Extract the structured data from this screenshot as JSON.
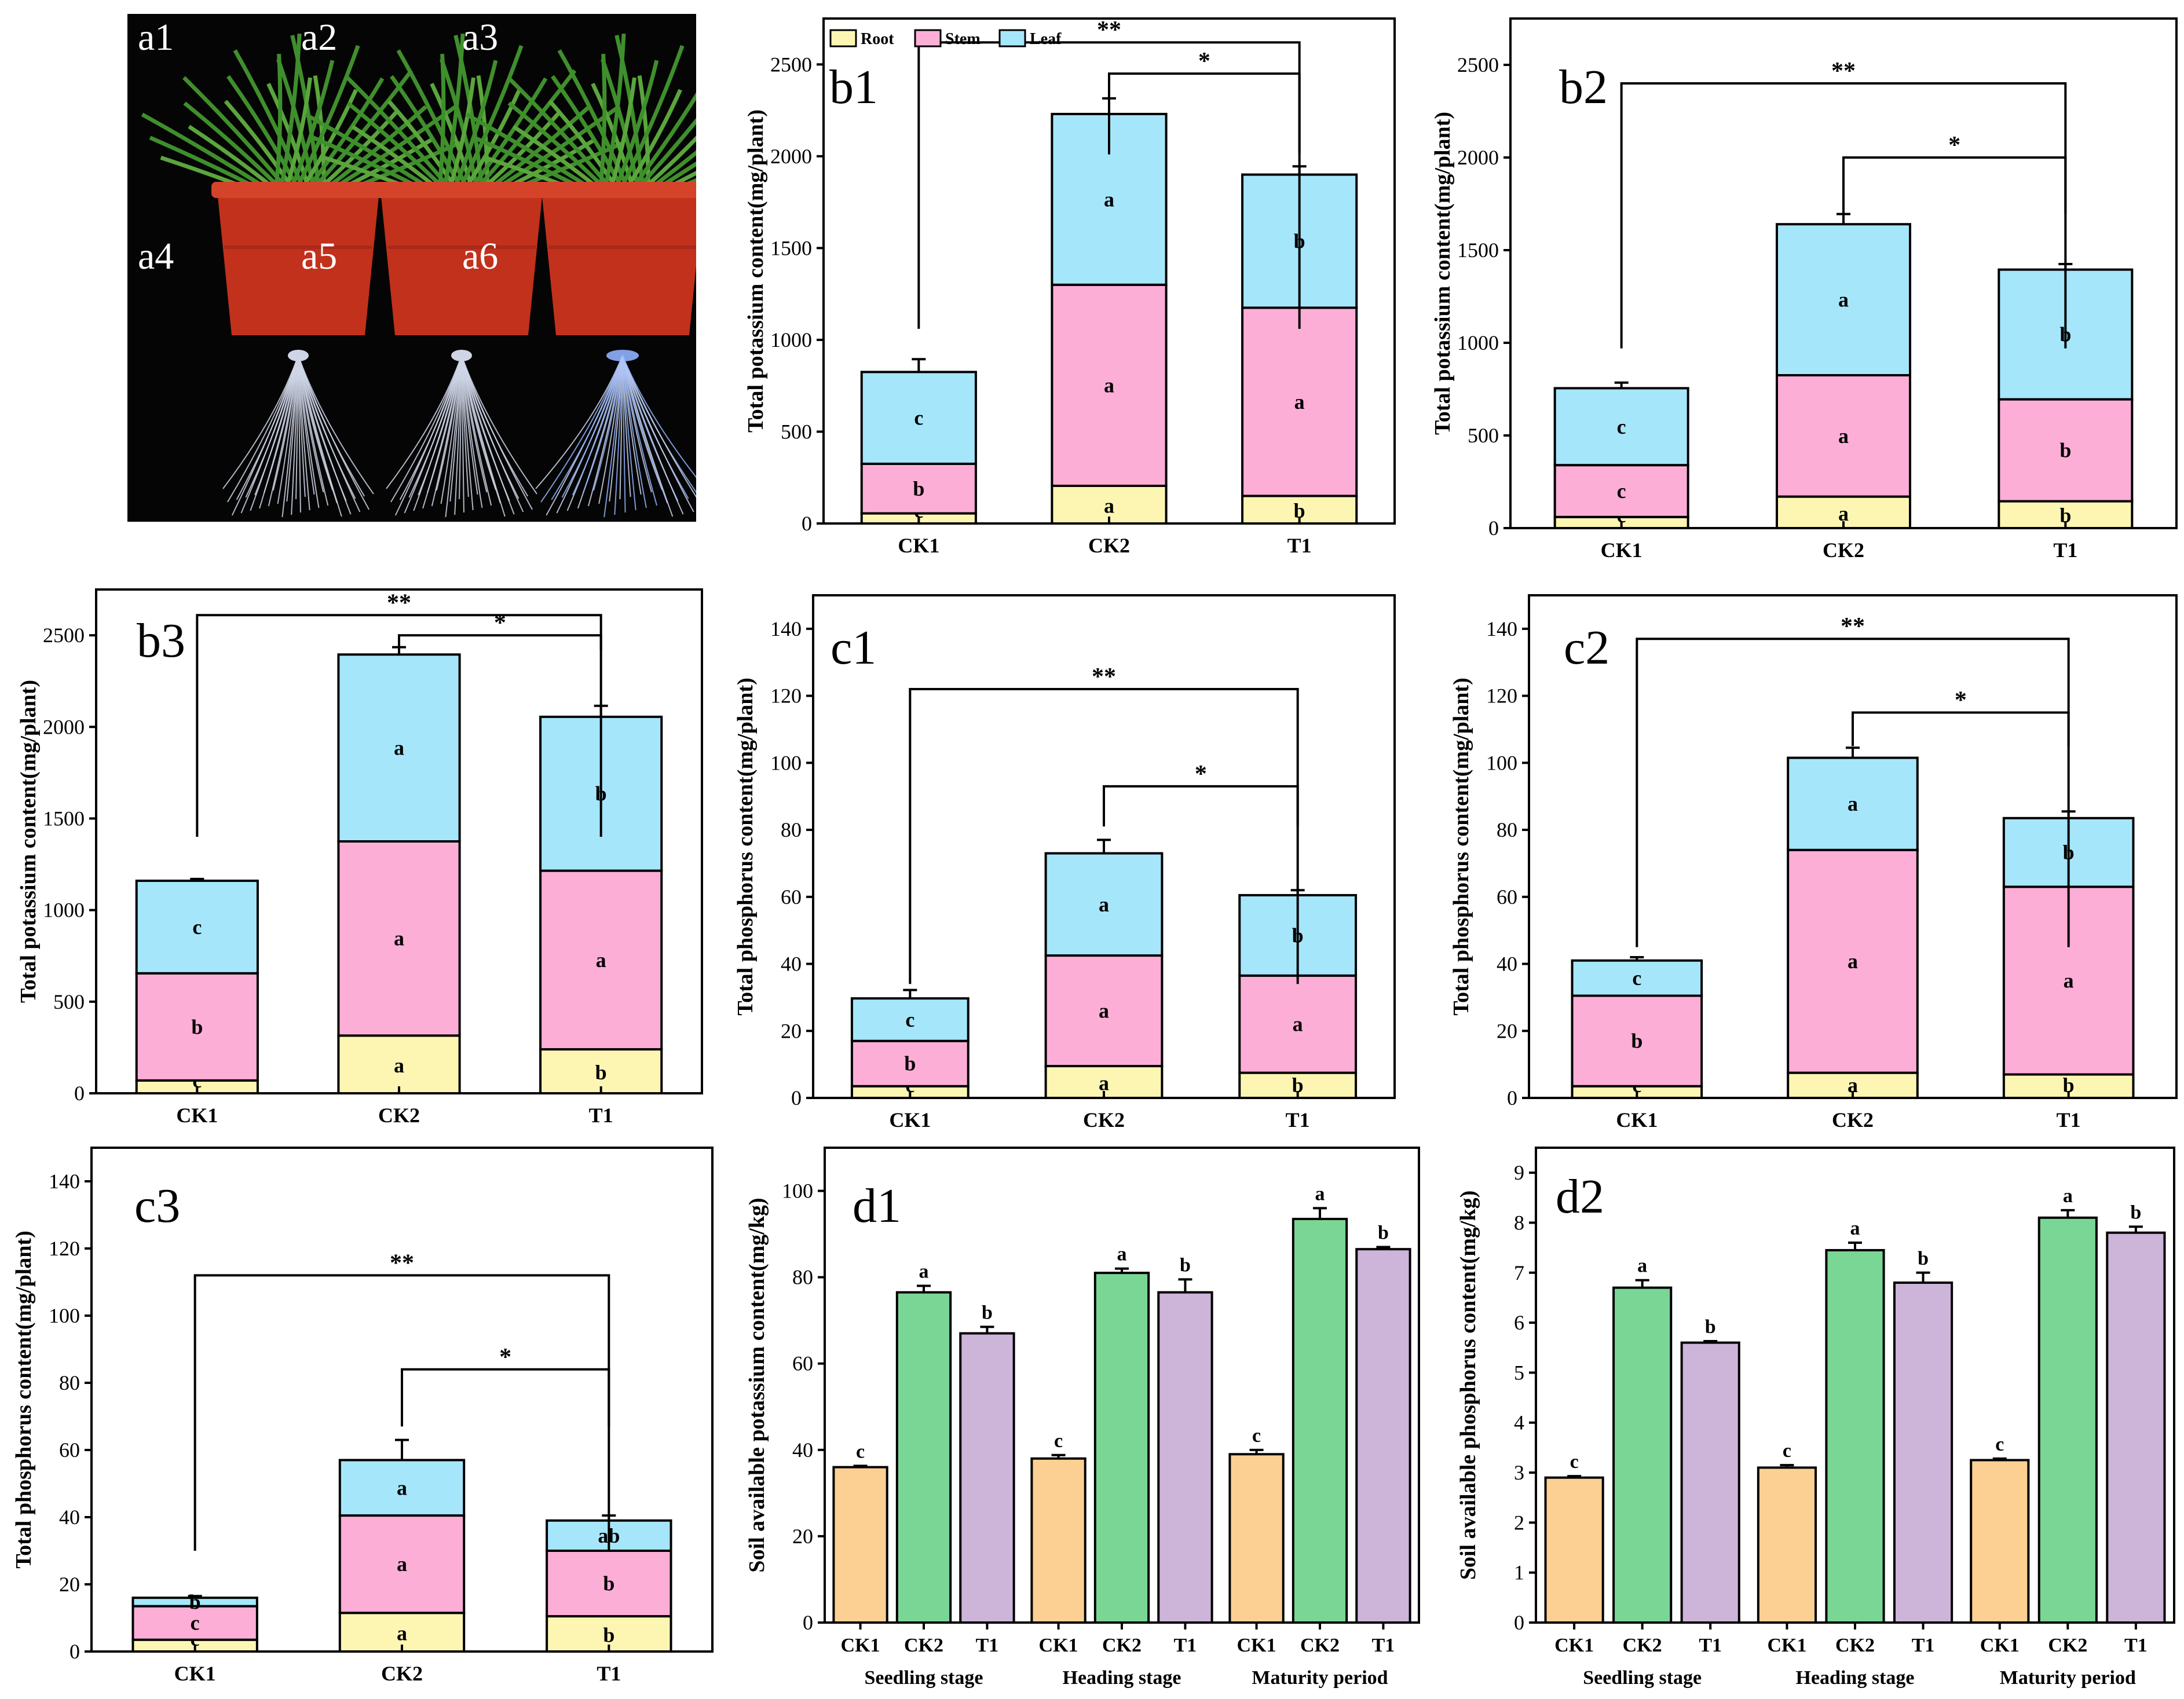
{
  "photo": {
    "labels": [
      "a1",
      "a2",
      "a3",
      "a4",
      "a5",
      "a6"
    ],
    "colors": {
      "pot": "#c2311c",
      "pot_rim": "#d5432a",
      "leaf": "#3f8f2c",
      "root": "#cfd6e8",
      "root_glow": "#8fb3ff"
    }
  },
  "colors": {
    "root": "#fdf6b3",
    "stem": "#fcaed7",
    "leaf": "#a6e6fb",
    "ck1": "#fcd092",
    "ck2": "#7ad695",
    "t1": "#cdb4d9",
    "stroke": "#000000"
  },
  "chart_data": [
    {
      "id": "b1",
      "type": "stacked-bar",
      "panel_label": "b1",
      "ylabel": "Total potassium content(mg/plant)",
      "ylim": [
        0,
        2750
      ],
      "yticks": [
        0,
        500,
        1000,
        1500,
        2000,
        2500
      ],
      "categories": [
        "CK1",
        "CK2",
        "T1"
      ],
      "legend": [
        "Root",
        "Stem",
        "Leaf"
      ],
      "series": [
        {
          "name": "Root",
          "values": [
            55,
            205,
            150
          ],
          "errors": [
            0,
            10,
            15
          ],
          "letters": [
            "c",
            "a",
            "b"
          ]
        },
        {
          "name": "Stem",
          "values": [
            270,
            1095,
            1025
          ],
          "errors": [
            40,
            55,
            130
          ],
          "letters": [
            "b",
            "a",
            "a"
          ]
        },
        {
          "name": "Leaf",
          "values": [
            500,
            930,
            725
          ],
          "errors": [
            70,
            85,
            45
          ],
          "letters": [
            "c",
            "a",
            "b"
          ]
        }
      ],
      "brackets": [
        {
          "from": "CK1",
          "to": "T1",
          "label": "**",
          "y": 2620,
          "drop": 1060
        },
        {
          "from": "CK2",
          "to": "T1",
          "label": "*",
          "y": 2450,
          "drop": 2010
        }
      ]
    },
    {
      "id": "b2",
      "type": "stacked-bar",
      "panel_label": "b2",
      "ylabel": "Total potassium content(mg/plant)",
      "ylim": [
        0,
        2750
      ],
      "yticks": [
        0,
        500,
        1000,
        1500,
        2000,
        2500
      ],
      "categories": [
        "CK1",
        "CK2",
        "T1"
      ],
      "series": [
        {
          "name": "Root",
          "values": [
            60,
            170,
            145
          ],
          "errors": [
            0,
            10,
            10
          ],
          "letters": [
            "c",
            "a",
            "b"
          ]
        },
        {
          "name": "Stem",
          "values": [
            280,
            655,
            550
          ],
          "errors": [
            35,
            55,
            40
          ],
          "letters": [
            "c",
            "a",
            "b"
          ]
        },
        {
          "name": "Leaf",
          "values": [
            415,
            815,
            700
          ],
          "errors": [
            30,
            55,
            30
          ],
          "letters": [
            "c",
            "a",
            "b"
          ]
        }
      ],
      "brackets": [
        {
          "from": "CK1",
          "to": "T1",
          "label": "**",
          "y": 2400,
          "drop": 970
        },
        {
          "from": "CK2",
          "to": "T1",
          "label": "*",
          "y": 2000,
          "drop": 1700
        }
      ]
    },
    {
      "id": "b3",
      "type": "stacked-bar",
      "panel_label": "b3",
      "ylabel": "Total potassium content(mg/plant)",
      "ylim": [
        0,
        2750
      ],
      "yticks": [
        0,
        500,
        1000,
        1500,
        2000,
        2500
      ],
      "categories": [
        "CK1",
        "CK2",
        "T1"
      ],
      "series": [
        {
          "name": "Root",
          "values": [
            70,
            315,
            240
          ],
          "errors": [
            0,
            10,
            10
          ],
          "letters": [
            "c",
            "a",
            "b"
          ]
        },
        {
          "name": "Stem",
          "values": [
            585,
            1060,
            975
          ],
          "errors": [
            40,
            65,
            25
          ],
          "letters": [
            "b",
            "a",
            "a"
          ]
        },
        {
          "name": "Leaf",
          "values": [
            505,
            1020,
            840
          ],
          "errors": [
            10,
            40,
            60
          ],
          "letters": [
            "c",
            "a",
            "b"
          ]
        }
      ],
      "brackets": [
        {
          "from": "CK1",
          "to": "T1",
          "label": "**",
          "y": 2610,
          "drop": 1400
        },
        {
          "from": "CK2",
          "to": "T1",
          "label": "*",
          "y": 2500,
          "drop": 2420
        }
      ]
    },
    {
      "id": "c1",
      "type": "stacked-bar",
      "panel_label": "c1",
      "ylabel": "Total phosphorus content(mg/plant)",
      "ylim": [
        0,
        150
      ],
      "yticks": [
        0,
        20,
        40,
        60,
        80,
        100,
        120,
        140
      ],
      "categories": [
        "CK1",
        "CK2",
        "T1"
      ],
      "series": [
        {
          "name": "Root",
          "values": [
            3.5,
            9.5,
            7.5
          ],
          "errors": [
            0,
            0.5,
            0.5
          ],
          "letters": [
            "c",
            "a",
            "b"
          ]
        },
        {
          "name": "Stem",
          "values": [
            13.5,
            33.0,
            29.0
          ],
          "errors": [
            2,
            4,
            4
          ],
          "letters": [
            "b",
            "a",
            "a"
          ]
        },
        {
          "name": "Leaf",
          "values": [
            12.7,
            30.5,
            24.0
          ],
          "errors": [
            2.5,
            4,
            1.5
          ],
          "letters": [
            "c",
            "a",
            "b"
          ]
        }
      ],
      "brackets": [
        {
          "from": "CK1",
          "to": "T1",
          "label": "**",
          "y": 122,
          "drop": 34
        },
        {
          "from": "CK2",
          "to": "T1",
          "label": "*",
          "y": 93,
          "drop": 81
        }
      ]
    },
    {
      "id": "c2",
      "type": "stacked-bar",
      "panel_label": "c2",
      "ylabel": "Total phosphorus content(mg/plant)",
      "ylim": [
        0,
        150
      ],
      "yticks": [
        0,
        20,
        40,
        60,
        80,
        100,
        120,
        140
      ],
      "categories": [
        "CK1",
        "CK2",
        "T1"
      ],
      "series": [
        {
          "name": "Root",
          "values": [
            3.5,
            7.5,
            7.0
          ],
          "errors": [
            0,
            0.8,
            0.5
          ],
          "letters": [
            "c",
            "a",
            "b"
          ]
        },
        {
          "name": "Stem",
          "values": [
            27.0,
            66.5,
            56.0
          ],
          "errors": [
            5,
            6,
            5
          ],
          "letters": [
            "b",
            "a",
            "a"
          ]
        },
        {
          "name": "Leaf",
          "values": [
            10.5,
            27.5,
            20.5
          ],
          "errors": [
            1,
            3,
            2
          ],
          "letters": [
            "c",
            "a",
            "b"
          ]
        }
      ],
      "brackets": [
        {
          "from": "CK1",
          "to": "T1",
          "label": "**",
          "y": 137,
          "drop": 45
        },
        {
          "from": "CK2",
          "to": "T1",
          "label": "*",
          "y": 115,
          "drop": 105
        }
      ]
    },
    {
      "id": "c3",
      "type": "stacked-bar",
      "panel_label": "c3",
      "ylabel": "Total phosphorus content(mg/plant)",
      "ylim": [
        0,
        150
      ],
      "yticks": [
        0,
        20,
        40,
        60,
        80,
        100,
        120,
        140
      ],
      "categories": [
        "CK1",
        "CK2",
        "T1"
      ],
      "series": [
        {
          "name": "Root",
          "values": [
            3.5,
            11.5,
            10.5
          ],
          "errors": [
            0,
            0.5,
            0.5
          ],
          "letters": [
            "c",
            "a",
            "b"
          ]
        },
        {
          "name": "Stem",
          "values": [
            10.0,
            29.0,
            19.5
          ],
          "errors": [
            0.5,
            3,
            2
          ],
          "letters": [
            "c",
            "a",
            "b"
          ]
        },
        {
          "name": "Leaf",
          "values": [
            2.5,
            16.5,
            9.0
          ],
          "errors": [
            0.5,
            6,
            1.5
          ],
          "letters": [
            "b",
            "a",
            "ab"
          ]
        }
      ],
      "brackets": [
        {
          "from": "CK1",
          "to": "T1",
          "label": "**",
          "y": 112,
          "drop": 30
        },
        {
          "from": "CK2",
          "to": "T1",
          "label": "*",
          "y": 84,
          "drop": 67
        }
      ]
    },
    {
      "id": "d1",
      "type": "grouped-bar",
      "panel_label": "d1",
      "ylabel": "Soil available potassium content(mg/kg)",
      "ylim": [
        0,
        110
      ],
      "yticks": [
        0,
        20,
        40,
        60,
        80,
        100
      ],
      "groups": [
        "Seedling stage",
        "Heading stage",
        "Maturity period"
      ],
      "treatments": [
        "CK1",
        "CK2",
        "T1"
      ],
      "values": [
        [
          36.0,
          76.5,
          67.0
        ],
        [
          38.0,
          81.0,
          76.5
        ],
        [
          39.0,
          93.5,
          86.5
        ]
      ],
      "errors": [
        [
          0.3,
          1.5,
          1.5
        ],
        [
          0.8,
          1.0,
          3.0
        ],
        [
          1.0,
          2.5,
          0.5
        ]
      ],
      "letters": [
        [
          "c",
          "a",
          "b"
        ],
        [
          "c",
          "a",
          "b"
        ],
        [
          "c",
          "a",
          "b"
        ]
      ]
    },
    {
      "id": "d2",
      "type": "grouped-bar",
      "panel_label": "d2",
      "ylabel": "Soil available phosphorus content(mg/kg)",
      "ylim": [
        0,
        9.5
      ],
      "yticks": [
        0,
        1,
        2,
        3,
        4,
        5,
        6,
        7,
        8,
        9
      ],
      "groups": [
        "Seedling stage",
        "Heading stage",
        "Maturity period"
      ],
      "treatments": [
        "CK1",
        "CK2",
        "T1"
      ],
      "values": [
        [
          2.9,
          6.7,
          5.6
        ],
        [
          3.1,
          7.45,
          6.8
        ],
        [
          3.25,
          8.1,
          7.8
        ]
      ],
      "errors": [
        [
          0.03,
          0.15,
          0.03
        ],
        [
          0.05,
          0.15,
          0.2
        ],
        [
          0.03,
          0.15,
          0.12
        ]
      ],
      "letters": [
        [
          "c",
          "a",
          "b"
        ],
        [
          "c",
          "a",
          "b"
        ],
        [
          "c",
          "a",
          "b"
        ]
      ]
    }
  ]
}
